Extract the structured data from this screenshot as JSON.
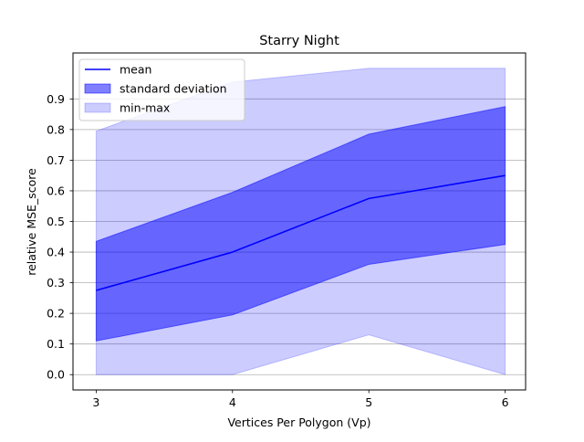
{
  "chart_data": {
    "type": "area",
    "title": "Starry Night",
    "xlabel": "Vertices Per Polygon (Vp)",
    "ylabel": "relative MSE_score",
    "x": [
      3,
      4,
      5,
      6
    ],
    "xlim": [
      2.83,
      6.15
    ],
    "ylim": [
      -0.05,
      1.05
    ],
    "x_ticks": [
      "3",
      "4",
      "5",
      "6"
    ],
    "y_ticks": [
      "0.0",
      "0.1",
      "0.2",
      "0.3",
      "0.4",
      "0.5",
      "0.6",
      "0.7",
      "0.8",
      "0.9"
    ],
    "grid": "horizontal",
    "legend_position": "top-left",
    "series": [
      {
        "name": "mean",
        "kind": "line",
        "values": [
          0.275,
          0.4,
          0.575,
          0.65
        ],
        "color": "#0000ff"
      },
      {
        "name": "standard deviation",
        "kind": "band",
        "lower": [
          0.11,
          0.195,
          0.36,
          0.425
        ],
        "upper": [
          0.435,
          0.595,
          0.785,
          0.875
        ],
        "color": "#0000ff",
        "opacity": 0.5
      },
      {
        "name": "min-max",
        "kind": "band",
        "lower": [
          0.0,
          0.0,
          0.13,
          0.0
        ],
        "upper": [
          0.795,
          0.955,
          1.0,
          1.0
        ],
        "color": "#0000ff",
        "opacity": 0.2
      }
    ]
  }
}
